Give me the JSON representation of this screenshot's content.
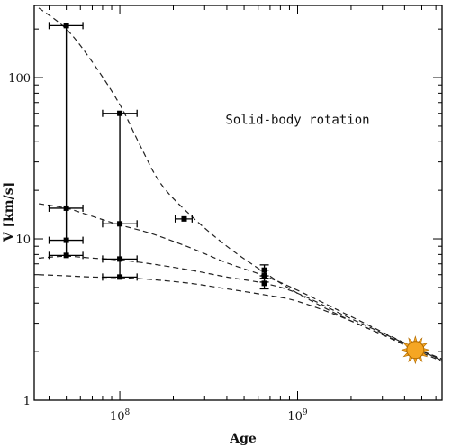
{
  "chart_data": {
    "type": "scatter",
    "title": "",
    "xlabel": "Age",
    "ylabel": "V  [km/s]",
    "xscale": "log",
    "yscale": "log",
    "xlim": [
      33000000.0,
      6500000000.0
    ],
    "ylim": [
      1,
      280
    ],
    "x_tick_labels": [
      {
        "value": 100000000.0,
        "base": "10",
        "exp": "8"
      },
      {
        "value": 1000000000.0,
        "base": "10",
        "exp": "9"
      }
    ],
    "y_tick_labels": [
      {
        "value": 1,
        "label": "1"
      },
      {
        "value": 10,
        "label": "10"
      },
      {
        "value": 100,
        "label": "100"
      }
    ],
    "annotations": [
      {
        "text": "Solid-body rotation",
        "x": 1000000000.0,
        "y": 55
      }
    ],
    "grid": false,
    "legend": "none",
    "points": [
      {
        "x": 50000000.0,
        "y": 210,
        "xerr": [
          40000000.0,
          62000000.0
        ]
      },
      {
        "x": 50000000.0,
        "y": 15.5,
        "xerr": [
          40000000.0,
          62000000.0
        ]
      },
      {
        "x": 50000000.0,
        "y": 9.8,
        "xerr": [
          40000000.0,
          62000000.0
        ]
      },
      {
        "x": 50000000.0,
        "y": 7.9,
        "xerr": [
          40000000.0,
          62000000.0
        ]
      },
      {
        "x": 100000000.0,
        "y": 60,
        "xerr": [
          80000000.0,
          125000000.0
        ]
      },
      {
        "x": 100000000.0,
        "y": 12.4,
        "xerr": [
          80000000.0,
          125000000.0
        ]
      },
      {
        "x": 100000000.0,
        "y": 7.5,
        "xerr": [
          80000000.0,
          125000000.0
        ]
      },
      {
        "x": 100000000.0,
        "y": 5.8,
        "xerr": [
          80000000.0,
          125000000.0
        ]
      },
      {
        "x": 230000000.0,
        "y": 13.3,
        "xerr": [
          205000000.0,
          255000000.0
        ]
      },
      {
        "x": 650000000.0,
        "y": 6.4,
        "yerr": [
          5.9,
          6.9
        ]
      },
      {
        "x": 650000000.0,
        "y": 5.9,
        "yerr": [
          5.4,
          6.4
        ]
      },
      {
        "x": 650000000.0,
        "y": 5.3,
        "yerr": [
          4.9,
          5.7
        ]
      }
    ],
    "vertical_ranges": [
      {
        "x": 50000000.0,
        "y1": 7.9,
        "y2": 210
      },
      {
        "x": 100000000.0,
        "y1": 5.8,
        "y2": 60
      }
    ],
    "curves": [
      {
        "points": [
          [
            35000000.0,
            270
          ],
          [
            50000000.0,
            200
          ],
          [
            70000000.0,
            125
          ],
          [
            100000000.0,
            68
          ],
          [
            130000000.0,
            38
          ],
          [
            170000000.0,
            22
          ],
          [
            250000000.0,
            14
          ],
          [
            400000000.0,
            9
          ],
          [
            650000000.0,
            6.2
          ],
          [
            1000000000.0,
            4.6
          ],
          [
            2000000000.0,
            3.1
          ],
          [
            4600000000.0,
            2.1
          ],
          [
            6500000000.0,
            1.8
          ]
        ]
      },
      {
        "points": [
          [
            35000000.0,
            16.5
          ],
          [
            50000000.0,
            15.5
          ],
          [
            70000000.0,
            13.8
          ],
          [
            100000000.0,
            12.2
          ],
          [
            150000000.0,
            10.8
          ],
          [
            250000000.0,
            8.8
          ],
          [
            400000000.0,
            7.1
          ],
          [
            650000000.0,
            5.9
          ],
          [
            1000000000.0,
            4.8
          ],
          [
            2000000000.0,
            3.3
          ],
          [
            4600000000.0,
            2.1
          ],
          [
            6500000000.0,
            1.78
          ]
        ]
      },
      {
        "points": [
          [
            35000000.0,
            7.6
          ],
          [
            50000000.0,
            7.8
          ],
          [
            70000000.0,
            7.6
          ],
          [
            100000000.0,
            7.4
          ],
          [
            150000000.0,
            7.0
          ],
          [
            250000000.0,
            6.4
          ],
          [
            400000000.0,
            5.8
          ],
          [
            650000000.0,
            5.3
          ],
          [
            1000000000.0,
            4.6
          ],
          [
            2000000000.0,
            3.2
          ],
          [
            4600000000.0,
            2.1
          ],
          [
            6500000000.0,
            1.76
          ]
        ]
      },
      {
        "points": [
          [
            35000000.0,
            6.0
          ],
          [
            50000000.0,
            5.9
          ],
          [
            70000000.0,
            5.8
          ],
          [
            100000000.0,
            5.75
          ],
          [
            150000000.0,
            5.6
          ],
          [
            250000000.0,
            5.3
          ],
          [
            400000000.0,
            4.9
          ],
          [
            650000000.0,
            4.5
          ],
          [
            1000000000.0,
            4.1
          ],
          [
            2000000000.0,
            3.1
          ],
          [
            4600000000.0,
            2.05
          ],
          [
            6500000000.0,
            1.74
          ]
        ]
      }
    ],
    "sun": {
      "x": 4600000000.0,
      "y": 2.05,
      "color": "#f5a623",
      "edge": "#b06a00",
      "icon": "sun-icon"
    }
  }
}
